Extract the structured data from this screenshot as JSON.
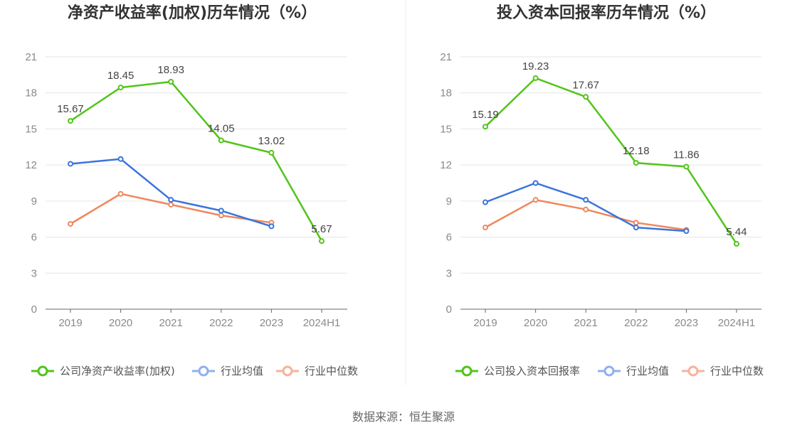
{
  "colors": {
    "company": "#52c41a",
    "industry_avg": "#3a74dc",
    "industry_median": "#f0865e",
    "legend_avg": "#8fb0f0",
    "legend_median": "#f7b29a"
  },
  "source_text": "数据来源：恒生聚源",
  "chart_data": [
    {
      "type": "line",
      "title": "净资产收益率(加权)历年情况（%）",
      "categories": [
        "2019",
        "2020",
        "2021",
        "2022",
        "2023",
        "2024H1"
      ],
      "yticks": [
        "0",
        "3",
        "6",
        "9",
        "12",
        "15",
        "18",
        "21"
      ],
      "ylim": [
        0,
        21
      ],
      "series": [
        {
          "name": "公司净资产收益率(加权)",
          "key": "company",
          "values": [
            15.67,
            18.45,
            18.93,
            14.05,
            13.02,
            5.67
          ],
          "labels": [
            "15.67",
            "18.45",
            "18.93",
            "14.05",
            "13.02",
            "5.67"
          ]
        },
        {
          "name": "行业均值",
          "key": "industry_avg",
          "values": [
            12.1,
            12.5,
            9.1,
            8.2,
            6.9,
            null
          ]
        },
        {
          "name": "行业中位数",
          "key": "industry_median",
          "values": [
            7.1,
            9.6,
            8.7,
            7.8,
            7.2,
            null
          ]
        }
      ],
      "grid": true,
      "legend": "bottom"
    },
    {
      "type": "line",
      "title": "投入资本回报率历年情况（%）",
      "categories": [
        "2019",
        "2020",
        "2021",
        "2022",
        "2023",
        "2024H1"
      ],
      "yticks": [
        "0",
        "3",
        "6",
        "9",
        "12",
        "15",
        "18",
        "21"
      ],
      "ylim": [
        0,
        21
      ],
      "series": [
        {
          "name": "公司投入资本回报率",
          "key": "company",
          "values": [
            15.19,
            19.23,
            17.67,
            12.18,
            11.86,
            5.44
          ],
          "labels": [
            "15.19",
            "19.23",
            "17.67",
            "12.18",
            "11.86",
            "5.44"
          ]
        },
        {
          "name": "行业均值",
          "key": "industry_avg",
          "values": [
            8.9,
            10.5,
            9.1,
            6.8,
            6.5,
            null
          ]
        },
        {
          "name": "行业中位数",
          "key": "industry_median",
          "values": [
            6.8,
            9.1,
            8.3,
            7.2,
            6.6,
            null
          ]
        }
      ],
      "grid": true,
      "legend": "bottom"
    }
  ]
}
